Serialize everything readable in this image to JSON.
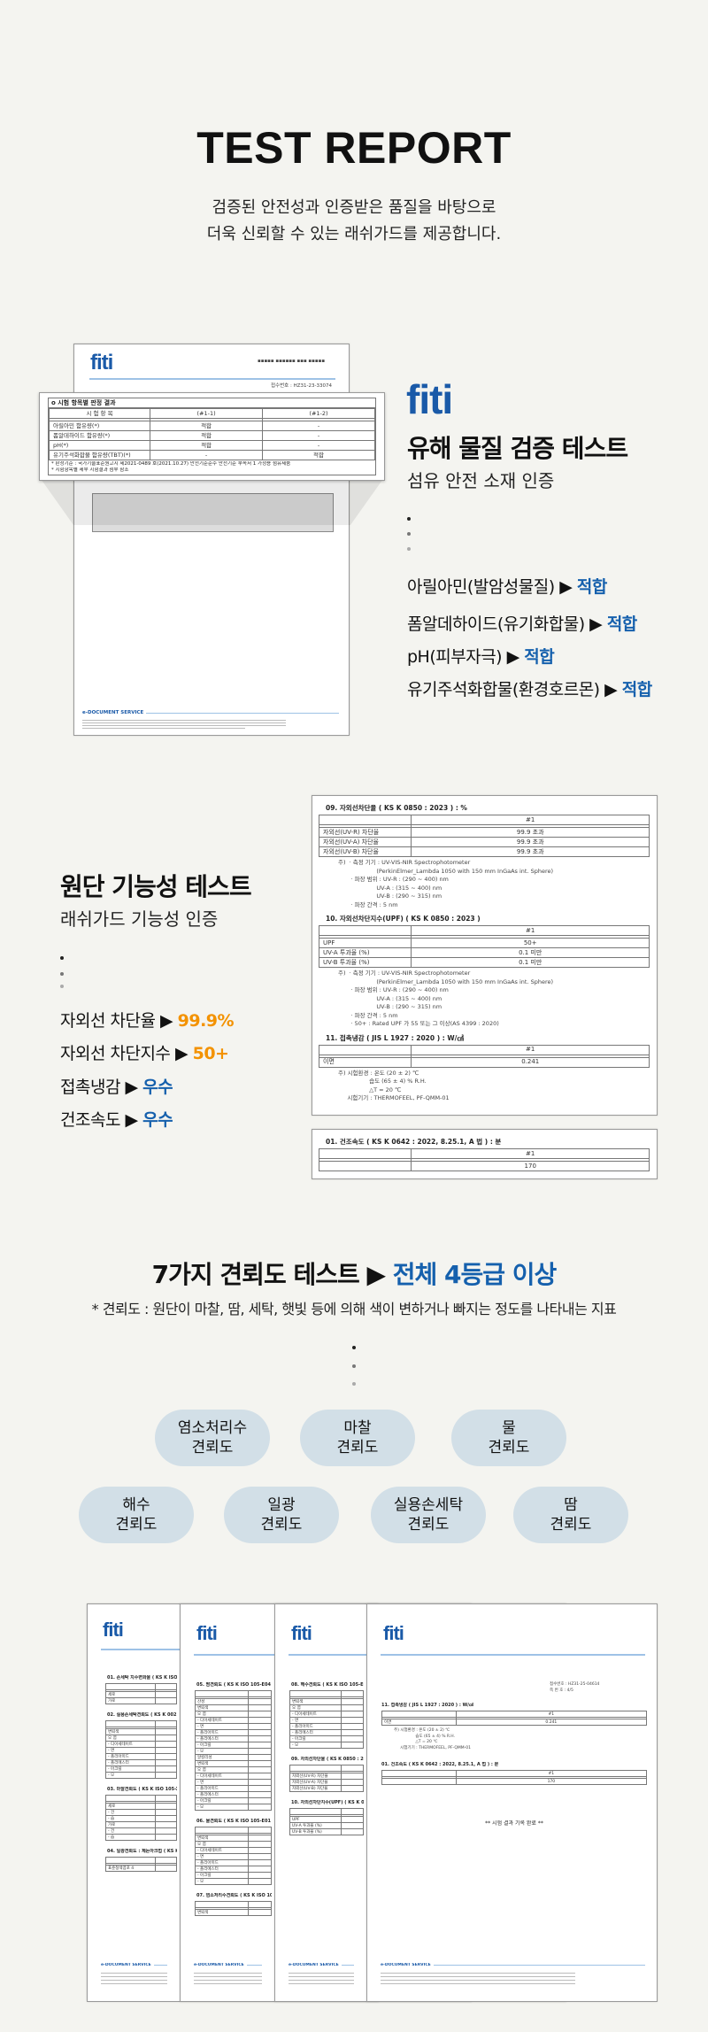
{
  "header": {
    "title": "TEST REPORT",
    "subtitle_lines": [
      "검증된 안전성과 인증받은 품질을 바탕으로",
      "더욱 신뢰할 수 있는 래쉬가드를 제공합니다."
    ]
  },
  "logo": {
    "text": "fiti"
  },
  "colors": {
    "accent_blue": "#1560ad",
    "accent_orange": "#f39200",
    "pill_bg": "#d2dfe7",
    "background": "#f4f4f0"
  },
  "icons": {
    "arrow": "black-right-triangle-icon"
  },
  "section1": {
    "title": "유해 물질 검증 테스트",
    "subtitle": "섬유 안전 소재 인증",
    "items": [
      {
        "label": "아릴아민(발암성물질)",
        "result": "적합"
      },
      {
        "label": "폼알데하이드(유기화합물)",
        "result": "적합"
      },
      {
        "label": "pH(피부자극)",
        "result": "적합"
      },
      {
        "label": "유기주석화합물(환경호르몬)",
        "result": "적합"
      }
    ],
    "doc": {
      "receipt": "접수번호 : HZ31-23-33074",
      "popup_heading": "o 시험 항목별 판정 결과",
      "columns": [
        "시 험 항 목",
        "(#1-1)",
        "(#1-2)"
      ],
      "rows": [
        [
          "아릴아민 함유량(*)",
          "적합",
          "-"
        ],
        [
          "폼알데하이드 함유량(*)",
          "적합",
          "-"
        ],
        [
          "pH(*)",
          "적합",
          "-"
        ],
        [
          "유기주석화합물 함유량(TBT)(*)",
          "-",
          "적합"
        ]
      ],
      "notes": [
        "* 판정기준 : 국가기술표준원고시 제2021-0489 호(2021.10.27) 안전기준준수 안전기준 부속서 1 가정용 섬유제품",
        "* 시험항목별 세부 시험결과 첨부 참조"
      ],
      "footer": "e-DOCUMENT SERVICE"
    }
  },
  "section2": {
    "title": "원단 기능성 테스트",
    "subtitle": "래쉬가드 기능성 인증",
    "items": [
      {
        "label": "자외선 차단율",
        "result": "99.9%",
        "color": "orange"
      },
      {
        "label": "자외선 차단지수",
        "result": "50+",
        "color": "orange"
      },
      {
        "label": "접촉냉감",
        "result": "우수",
        "color": "blue"
      },
      {
        "label": "건조속도",
        "result": "우수",
        "color": "blue"
      }
    ],
    "doc": {
      "t09": {
        "heading": "09.  자외선차단율 ( KS K 0850 : 2023 ) : %",
        "col": "#1",
        "rows": [
          [
            "자외선(UV-R) 차단율",
            "99.9 초과"
          ],
          [
            "자외선(UV-A) 차단율",
            "99.9 초과"
          ],
          [
            "자외선(UV-B) 차단율",
            "99.9 초과"
          ]
        ],
        "note": "주)  · 측정 기기 : UV-VIS-NIR Spectrophotometer\n                     (PerkinElmer_Lambda 1050 with 150 mm InGaAs int. Sphere)\n       · 파장 범위 : UV-R : (290 ~ 400) nm\n                     UV-A : (315 ~ 400) nm\n                     UV-B : (290 ~ 315) nm\n       · 파장 간격 : 5 nm"
      },
      "t10": {
        "heading": "10.  자외선차단지수(UPF) ( KS K 0850 : 2023 )",
        "col": "#1",
        "rows": [
          [
            "UPF",
            "50+"
          ],
          [
            "UV-A 투과율 (%)",
            "0.1 미만"
          ],
          [
            "UV-B 투과율 (%)",
            "0.1 미만"
          ]
        ],
        "note": "주)  · 측정 기기 : UV-VIS-NIR Spectrophotometer\n                     (PerkinElmer_Lambda 1050 with 150 mm InGaAs int. Sphere)\n       · 파장 범위 : UV-R : (290 ~ 400) nm\n                     UV-A : (315 ~ 400) nm\n                     UV-B : (290 ~ 315) nm\n       · 파장 간격 : 5 nm\n       · 50+ : Rated UPF 가 55 또는 그 이상(AS 4399 : 2020)"
      },
      "t11": {
        "heading": "11.  접촉냉감 ( JIS L 1927 : 2020 ) : W/㎠",
        "col": "#1",
        "rows": [
          [
            "이면",
            "0.241"
          ]
        ],
        "note": "주) 시험환경 : 온도 (20 ± 2) ℃\n                 습도 (65 ± 4) % R.H.\n                 △T = 20 ℃\n     시험기기 : THERMOFEEL, PF-QMM-01"
      },
      "t01": {
        "heading": "01.  건조속도 ( KS K 0642 : 2022, 8.25.1, A 법 ) : 분",
        "col": "#1",
        "rows": [
          [
            "",
            "170"
          ]
        ]
      }
    }
  },
  "section3": {
    "title_prefix": "7가지 견뢰도 테스트",
    "title_highlight": "전체 4등급 이상",
    "note": "* 견뢰도 : 원단이 마찰, 땀, 세탁, 햇빛 등에 의해 색이 변하거나 빠지는 정도를 나타내는 지표",
    "pills": [
      "염소처리수\n견뢰도",
      "마찰\n견뢰도",
      "물\n견뢰도",
      "해수\n견뢰도",
      "일광\n견뢰도",
      "실용손세탁\n견뢰도",
      "땀\n견뢰도"
    ]
  },
  "collage": {
    "footer": "e-DOCUMENT SERVICE",
    "pages": [
      {
        "sections": [
          {
            "h": "01. 손세탁 치수변화율 ( KS K ISO 5077",
            "rows": [
              "세로",
              "가로"
            ]
          },
          {
            "h": "02. 실용손세탁견뢰도 ( KS K 0021:2016 준용, 106 호,",
            "rows": [
              "변퇴색",
              "오 염",
              "- 디아세테이트",
              "- 면",
              "- 폴리아미드",
              "- 폴리에스터",
              "- 아크릴",
              "- 모"
            ]
          },
          {
            "h": "03. 마찰견뢰도 ( KS K ISO 105-X12 :",
            "rows": [
              "세로",
              "- 건",
              "- 습",
              "가로",
              "- 건",
              "- 습"
            ]
          },
          {
            "h": "04. 일광견뢰도 : 제논아크법 ( KS K",
            "rows": [
              "표준청색염포 4"
            ]
          }
        ]
      },
      {
        "sections": [
          {
            "h": "05. 땀견뢰도 ( KS K ISO 105-E04 : 20",
            "rows": [
              "산성",
              "변퇴색",
              "오 염",
              "- 디아세테이트",
              "- 면",
              "- 폴리아미드",
              "- 폴리에스터",
              "- 아크릴",
              "- 모",
              "알칼리성",
              "변퇴색",
              "오 염",
              "- 디아세테이트",
              "- 면",
              "- 폴리아미드",
              "- 폴리에스터",
              "- 아크릴",
              "- 모"
            ]
          },
          {
            "h": "06. 물견뢰도 ( KS K ISO 105-E01 : 20",
            "rows": [
              "변퇴색",
              "오 염",
              "- 디아세테이트",
              "- 면",
              "- 폴리아미드",
              "- 폴리에스터",
              "- 아크릴",
              "- 모"
            ]
          },
          {
            "h": "07. 염소처리수견뢰도 ( KS K ISO 105-",
            "rows": [
              "변퇴색"
            ]
          }
        ]
      },
      {
        "sections": [
          {
            "h": "08. 해수견뢰도 ( KS K ISO 105-E02 :",
            "rows": [
              "변퇴색",
              "오 염",
              "- 디아세테이트",
              "- 면",
              "- 폴리아미드",
              "- 폴리에스터",
              "- 아크릴",
              "- 모"
            ]
          },
          {
            "h": "09. 자외선차단율 ( KS K 0850 : 2023 ) : %",
            "rows": [
              "자외선(UV-R) 차단율",
              "자외선(UV-A) 차단율",
              "자외선(UV-B) 차단율"
            ]
          },
          {
            "h": "10. 자외선차단지수(UPF) ( KS K 0850 : 2023 )",
            "rows": [
              "UPF",
              "UV-A 투과율 (%)",
              "UV-B 투과율 (%)"
            ]
          }
        ]
      },
      {
        "receipt": "접수번호 : HZ31-25-04614",
        "page_no": "쪽 번 호 : 4/5",
        "t11": "11. 접촉냉감 ( JIS L 1927 : 2020 ) : W/㎠",
        "t11_row": [
          "이면",
          "0.241"
        ],
        "t11_note": "주) 시험환경 : 온도 (20 ± 2) ℃\n                 습도 (65 ± 4) % R.H.\n                 △T = 20 ℃\n     시험기기 : THERMOFEEL, PF-QMM-01",
        "t01": "01. 건조속도 ( KS K 0642 : 2022, 8.25.1, A 법 ) : 분",
        "t01_row": [
          "",
          "170"
        ],
        "col": "#1",
        "end": "** 시험 결과 기록 완료 **"
      }
    ]
  }
}
